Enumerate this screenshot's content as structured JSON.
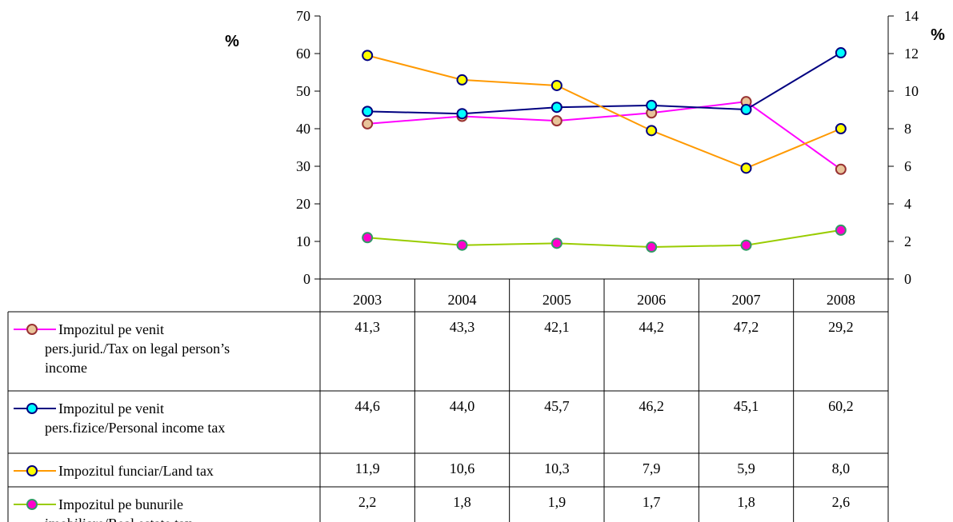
{
  "chart_data": {
    "type": "line",
    "left_unit": "%",
    "right_unit": "%",
    "categories": [
      "2003",
      "2004",
      "2005",
      "2006",
      "2007",
      "2008"
    ],
    "y_left": {
      "ylim": [
        0,
        70
      ],
      "ticks": [
        "0",
        "10",
        "20",
        "30",
        "40",
        "50",
        "60",
        "70"
      ]
    },
    "y_right": {
      "ylim": [
        0,
        14
      ],
      "ticks": [
        "0",
        "2",
        "4",
        "6",
        "8",
        "10",
        "12",
        "14"
      ]
    },
    "grid": false,
    "series": [
      {
        "name_lines": [
          "Impozitul pe venit",
          "pers.jurid./Tax on legal person’s",
          "income"
        ],
        "axis": "left",
        "values": [
          41.3,
          43.3,
          42.1,
          44.2,
          47.2,
          29.2
        ],
        "labels": [
          "41,3",
          "43,3",
          "42,1",
          "44,2",
          "47,2",
          "29,2"
        ],
        "line_color": "#ff00ff",
        "marker_fill": "#e8c49a",
        "marker_stroke": "#993333"
      },
      {
        "name_lines": [
          "Impozitul pe venit",
          "pers.fizice/Personal income tax"
        ],
        "axis": "left",
        "values": [
          44.6,
          44.0,
          45.7,
          46.2,
          45.1,
          60.2
        ],
        "labels": [
          "44,6",
          "44,0",
          "45,7",
          "46,2",
          "45,1",
          "60,2"
        ],
        "line_color": "#000080",
        "marker_fill": "#00ffff",
        "marker_stroke": "#000080"
      },
      {
        "name_lines": [
          "Impozitul funciar/Land tax"
        ],
        "axis": "right",
        "values": [
          11.9,
          10.6,
          10.3,
          7.9,
          5.9,
          8.0
        ],
        "labels": [
          "11,9",
          "10,6",
          "10,3",
          "7,9",
          "5,9",
          "8,0"
        ],
        "line_color": "#ff9900",
        "marker_fill": "#ffff00",
        "marker_stroke": "#000080"
      },
      {
        "name_lines": [
          "Impozitul pe bunurile",
          "imobiliare/Real estate tax"
        ],
        "axis": "right",
        "values": [
          2.2,
          1.8,
          1.9,
          1.7,
          1.8,
          2.6
        ],
        "labels": [
          "2,2",
          "1,8",
          "1,9",
          "1,7",
          "1,8",
          "2,6"
        ],
        "line_color": "#99cc00",
        "marker_fill": "#ff00cc",
        "marker_stroke": "#339966"
      }
    ]
  }
}
